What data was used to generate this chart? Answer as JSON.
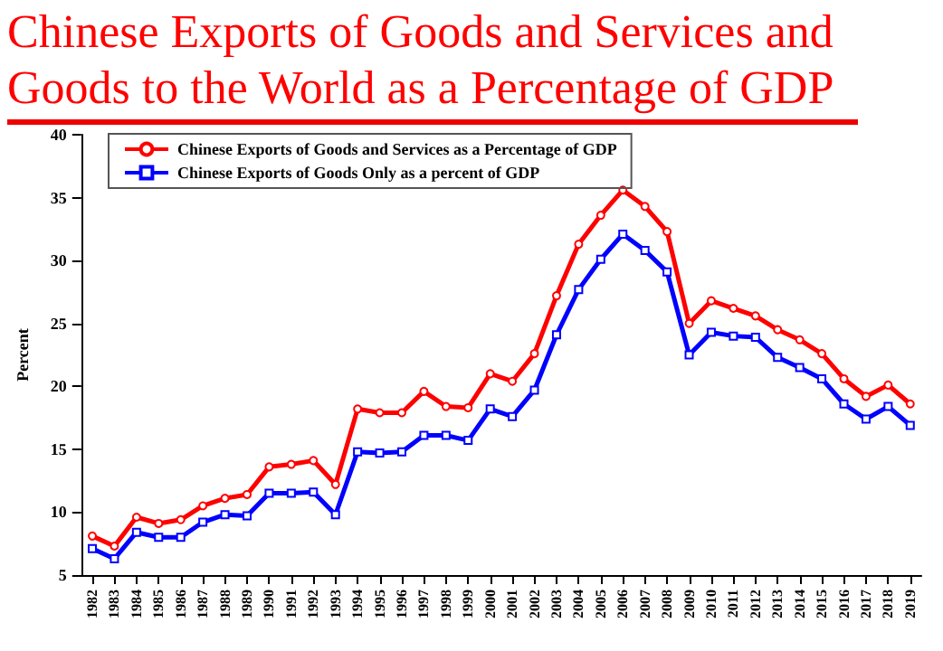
{
  "chart_data": {
    "type": "line",
    "title": "Chinese Exports of Goods and Services and Goods to the World as a Percentage of GDP",
    "ylabel": "Percent",
    "categories": [
      "1982",
      "1983",
      "1984",
      "1985",
      "1986",
      "1987",
      "1988",
      "1989",
      "1990",
      "1991",
      "1992",
      "1993",
      "1994",
      "1995",
      "1996",
      "1997",
      "1998",
      "1999",
      "2000",
      "2001",
      "2002",
      "2003",
      "2004",
      "2005",
      "2006",
      "2007",
      "2008",
      "2009",
      "2010",
      "2011",
      "2012",
      "2013",
      "2014",
      "2015",
      "2016",
      "2017",
      "2018",
      "2019"
    ],
    "series": [
      {
        "name": "Chinese Exports of Goods and Services as a Percentage of GDP",
        "color": "#ff0000",
        "marker": "circle",
        "values": [
          8.1,
          7.3,
          9.6,
          9.1,
          9.4,
          10.5,
          11.1,
          11.4,
          13.6,
          13.8,
          14.1,
          12.2,
          18.2,
          17.9,
          17.9,
          19.6,
          18.4,
          18.3,
          21.0,
          20.4,
          22.6,
          27.2,
          31.3,
          33.6,
          35.6,
          34.3,
          32.3,
          25.0,
          26.8,
          26.2,
          25.6,
          24.5,
          23.7,
          22.6,
          20.6,
          19.2,
          20.1,
          18.6
        ]
      },
      {
        "name": "Chinese Exports of Goods Only as a percent of GDP",
        "color": "#0000ff",
        "marker": "square",
        "values": [
          7.1,
          6.3,
          8.4,
          8.0,
          8.0,
          9.2,
          9.8,
          9.7,
          11.5,
          11.5,
          11.6,
          9.8,
          14.8,
          14.7,
          14.8,
          16.1,
          16.1,
          15.7,
          18.2,
          17.6,
          19.7,
          24.1,
          27.7,
          30.1,
          32.1,
          30.8,
          29.1,
          22.5,
          24.3,
          24.0,
          23.9,
          22.3,
          21.5,
          20.6,
          18.6,
          17.4,
          18.4,
          16.9
        ]
      }
    ],
    "ylim": [
      5,
      40
    ],
    "yticks": [
      5,
      10,
      15,
      20,
      25,
      30,
      35,
      40
    ],
    "grid": false,
    "legend": "top left"
  }
}
